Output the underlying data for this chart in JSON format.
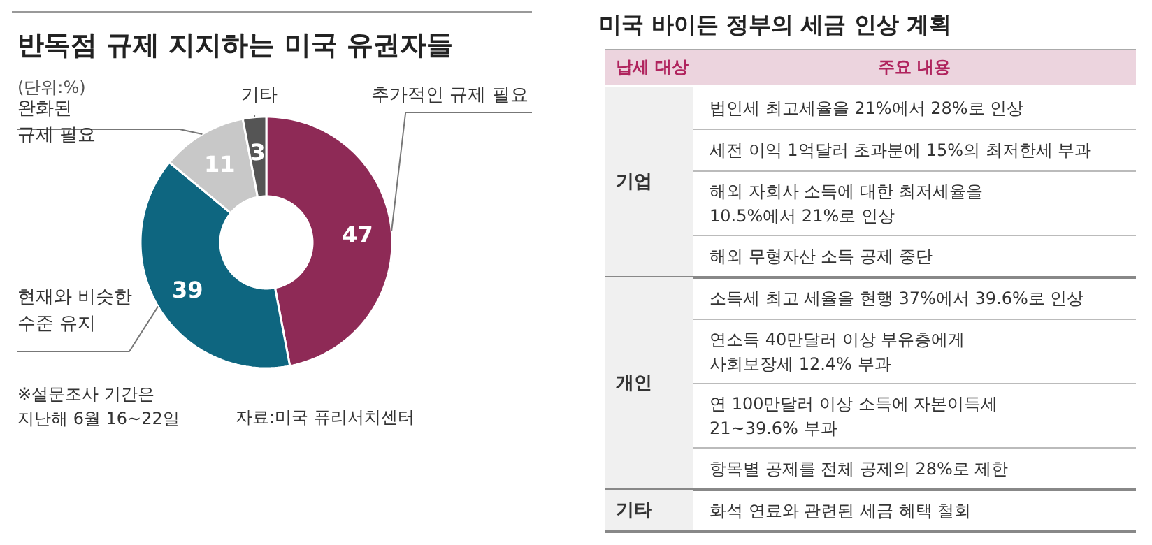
{
  "chart_data": [
    {
      "type": "donut",
      "title": "반독점 규제 지지하는 미국 유권자들",
      "subtitle": "(단위:%)",
      "categories": [
        "추가적인 규제 필요",
        "현재와 비슷한\n수준 유지",
        "완화된\n규제 필요",
        "기타"
      ],
      "values": [
        47,
        39,
        11,
        3
      ],
      "colors": [
        "#8e2a56",
        "#0e6680",
        "#c8c8c8",
        "#555555"
      ],
      "data_labels": true,
      "annotations": [
        "※설문조사 기간은\n지난해 6월 16~22일",
        "자료:미국 퓨리서치센터"
      ]
    },
    {
      "type": "other",
      "title": "미국 바이든 정부의 세금 인상 계획",
      "annotations": [
        "납세 대상",
        "주요 내용",
        "기업",
        "법인세 최고세율을 21%에서 28%로 인상",
        "세전 이익 1억달러 초과분에 15%의 최저한세 부과",
        "해외 자회사 소득에 대한 최저세율을\n10.5%에서 21%로 인상",
        "해외 무형자산 소득 공제 중단",
        "개인",
        "소득세 최고 세율을 현행 37%에서 39.6%로 인상",
        "연소득 40만달러 이상 부유층에게\n사회보장세 12.4% 부과",
        "연 100만달러 이상 소득에 자본이득세\n21~39.6% 부과",
        "항목별 공제를 전체 공제의 28%로 제한",
        "기타",
        "화석 연료와 관련된 세금 혜택 철회"
      ]
    }
  ]
}
